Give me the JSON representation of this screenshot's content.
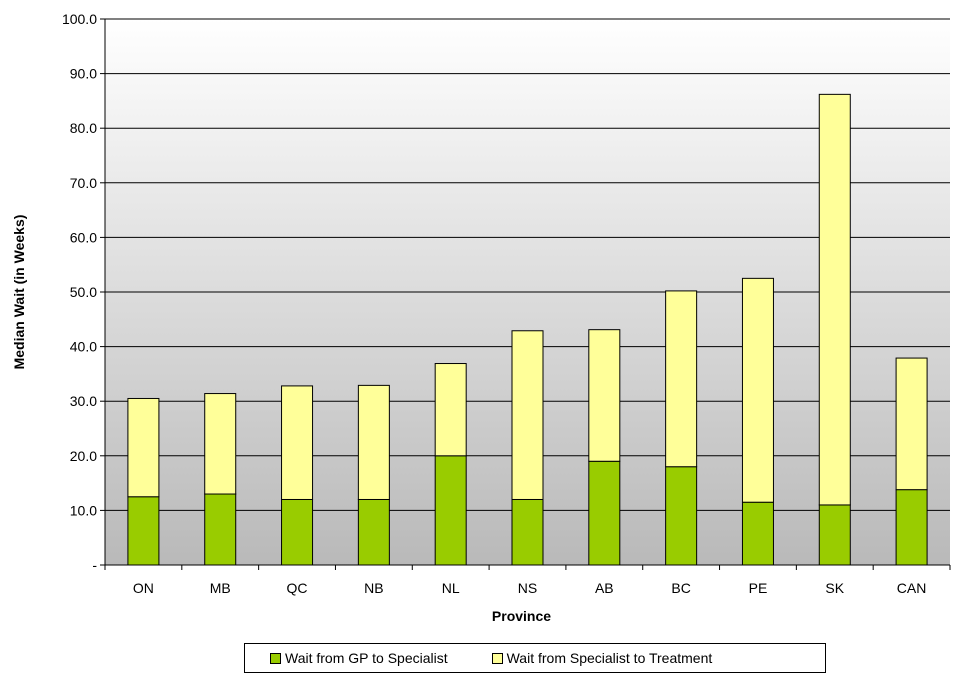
{
  "chart_data": {
    "type": "bar",
    "stacked": true,
    "title": "",
    "xlabel": "Province",
    "ylabel": "Median Wait (in Weeks)",
    "ylim": [
      0,
      100
    ],
    "yticks": [
      "-",
      "10.0",
      "20.0",
      "30.0",
      "40.0",
      "50.0",
      "60.0",
      "70.0",
      "80.0",
      "90.0",
      "100.0"
    ],
    "categories": [
      "ON",
      "MB",
      "QC",
      "NB",
      "NL",
      "NS",
      "AB",
      "BC",
      "PE",
      "SK",
      "CAN"
    ],
    "series": [
      {
        "name": "Wait from GP to Specialist",
        "color": "#99cc00",
        "values": [
          12.5,
          13.0,
          12.0,
          12.0,
          20.0,
          12.0,
          19.0,
          18.0,
          11.5,
          11.0,
          13.8
        ]
      },
      {
        "name": "Wait from Specialist to Treatment",
        "color": "#ffff99",
        "values": [
          18.0,
          18.4,
          20.8,
          20.9,
          16.9,
          30.9,
          24.1,
          32.2,
          41.0,
          75.2,
          24.1
        ]
      }
    ],
    "grid": true,
    "legend_position": "bottom",
    "plot_background": "gradient white to gray"
  }
}
